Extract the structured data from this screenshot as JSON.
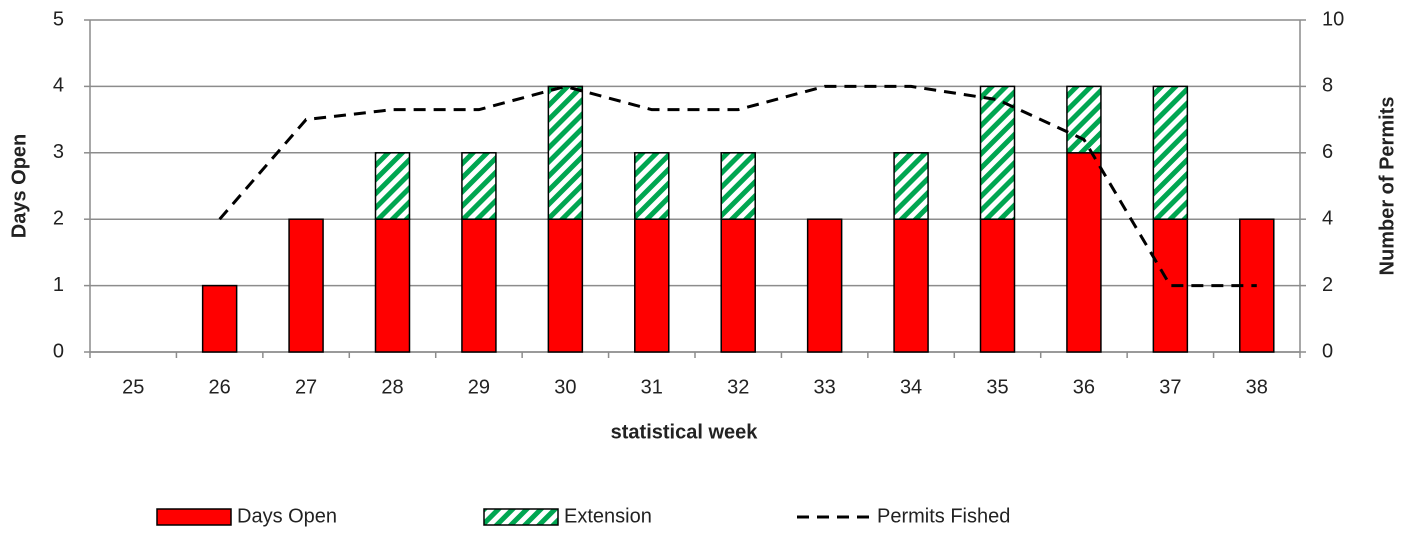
{
  "chart_data": {
    "type": "bar",
    "categories": [
      "25",
      "26",
      "27",
      "28",
      "29",
      "30",
      "31",
      "32",
      "33",
      "34",
      "35",
      "36",
      "37",
      "38"
    ],
    "series": [
      {
        "name": "Days Open",
        "type": "bar",
        "color": "#ff0000",
        "values": [
          null,
          1,
          2,
          2,
          2,
          2,
          2,
          2,
          2,
          2,
          2,
          3,
          2,
          2
        ]
      },
      {
        "name": "Extension",
        "type": "bar",
        "color": "#00a651",
        "pattern": "hatch",
        "values": [
          null,
          null,
          null,
          1,
          1,
          2,
          1,
          1,
          null,
          1,
          2,
          1,
          2,
          null
        ]
      },
      {
        "name": "Permits Fished",
        "type": "line",
        "color": "#000000",
        "dash": true,
        "axis": "y2",
        "values": [
          null,
          4,
          7,
          7.3,
          7.3,
          8,
          7.3,
          7.3,
          8,
          8,
          7.6,
          6.4,
          2,
          2
        ]
      }
    ],
    "xlabel": "statistical week",
    "ylabel": "Days Open",
    "y2label": "Number of Permits",
    "ylim": [
      0,
      5
    ],
    "yticks": [
      0,
      1,
      2,
      3,
      4,
      5
    ],
    "y2lim": [
      0,
      10
    ],
    "y2ticks": [
      0,
      2,
      4,
      6,
      8,
      10
    ],
    "grid": true,
    "legend": "bottom"
  }
}
